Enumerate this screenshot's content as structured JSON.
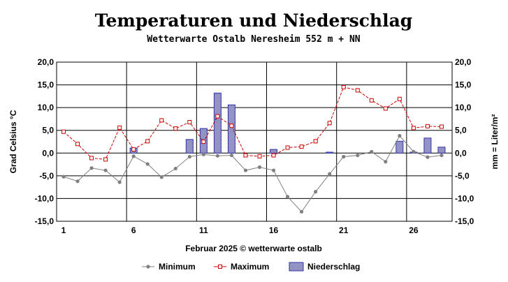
{
  "chart_data": {
    "type": "line+bar",
    "title": "Temperaturen und Niederschlag",
    "subtitle": "Wetterwarte Ostalb Neresheim 552 m + NN",
    "xlabel": "Februar 2025   © wetterwarte ostalb",
    "ylabel_left": "Grad Celsius °C",
    "ylabel_right": "mm = Liter/m²",
    "ylim": [
      -15,
      20
    ],
    "yticks": [
      20,
      15,
      10,
      5,
      0,
      -5,
      -10,
      -15
    ],
    "ytick_labels": [
      "20,0",
      "15,0",
      "10,0",
      "5,0",
      "0,0",
      "-5,0",
      "-10,0",
      "-15,0"
    ],
    "x": [
      1,
      2,
      3,
      4,
      5,
      6,
      7,
      8,
      9,
      10,
      11,
      12,
      13,
      14,
      15,
      16,
      17,
      18,
      19,
      20,
      21,
      22,
      23,
      24,
      25,
      26,
      27,
      28
    ],
    "xtick_values": [
      1,
      6,
      11,
      16,
      21,
      26
    ],
    "xtick_labels": [
      "1",
      "6",
      "11",
      "16",
      "21",
      "26"
    ],
    "series": [
      {
        "name": "Minimum",
        "kind": "line",
        "color": "#808080",
        "values": [
          -5.2,
          -6.2,
          -3.3,
          -3.8,
          -6.4,
          -0.7,
          -2.4,
          -5.3,
          -3.4,
          -0.8,
          -0.3,
          -0.6,
          -0.5,
          -3.8,
          -3.1,
          -3.8,
          -9.6,
          -12.9,
          -8.5,
          -4.6,
          -0.8,
          -0.5,
          0.3,
          -1.9,
          3.8,
          0.3,
          -0.9,
          -0.5
        ]
      },
      {
        "name": "Maximum",
        "kind": "line",
        "color": "#cc0000",
        "values": [
          4.7,
          2.0,
          -1.1,
          -1.4,
          5.6,
          0.8,
          2.6,
          7.2,
          5.4,
          6.8,
          2.5,
          8.1,
          6.0,
          -0.5,
          -0.7,
          -0.5,
          1.2,
          1.4,
          2.6,
          6.6,
          14.5,
          13.8,
          11.6,
          9.8,
          11.9,
          5.5,
          5.9,
          5.8
        ]
      },
      {
        "name": "Niederschlag",
        "kind": "bar",
        "color": "#3333aa",
        "values": [
          0,
          0,
          0,
          0,
          0,
          1.1,
          0,
          0,
          0,
          3.0,
          5.4,
          13.2,
          10.6,
          0,
          0,
          0.8,
          0,
          0,
          0,
          0.2,
          0,
          0,
          0,
          0,
          2.6,
          0.2,
          3.3,
          1.3
        ]
      }
    ],
    "legend": {
      "position": "bottom",
      "items": [
        "Minimum",
        "Maximum",
        "Niederschlag"
      ]
    }
  }
}
